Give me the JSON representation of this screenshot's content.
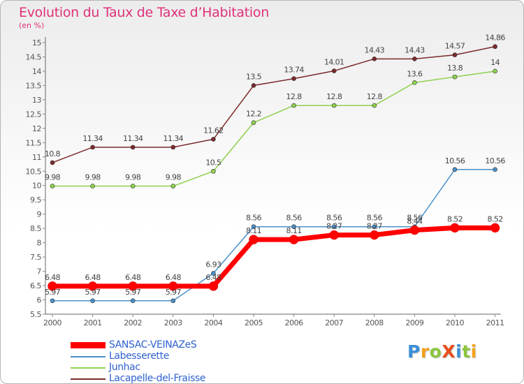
{
  "title": "Evolution du Taux de Taxe d’Habitation",
  "unit_label": "(en %)",
  "logo_text": "ProXiti",
  "chart_data": {
    "type": "line",
    "title": "Evolution du Taux de Taxe d’Habitation",
    "ylabel": "(en %)",
    "xlabel": "",
    "ylim": [
      5.5,
      15
    ],
    "yticks": [
      "5.5",
      "6",
      "6.5",
      "7",
      "7.5",
      "8",
      "8.5",
      "9",
      "9.5",
      "10",
      "10.5",
      "11",
      "11.5",
      "12",
      "12.5",
      "13",
      "13.5",
      "14",
      "14.5",
      "15"
    ],
    "categories": [
      "2000",
      "2001",
      "2002",
      "2003",
      "2004",
      "2005",
      "2006",
      "2007",
      "2008",
      "2009",
      "2010",
      "2011"
    ],
    "grid": false,
    "legend_position": "bottom-left",
    "series": [
      {
        "name": "SANSAC-VEINAZeS",
        "color": "#ff0000",
        "values": [
          6.48,
          6.48,
          6.48,
          6.48,
          6.48,
          8.11,
          8.11,
          8.27,
          8.27,
          8.44,
          8.52,
          8.52
        ],
        "labels": [
          "6.48",
          "6.48",
          "6.48",
          "6.48",
          "6.48",
          "8.11",
          "8.11",
          "8.27",
          "8.27",
          "8.44",
          "8.52",
          "8.52"
        ]
      },
      {
        "name": "Labesserette",
        "color": "#4a90c8",
        "values": [
          5.97,
          5.97,
          5.97,
          5.97,
          6.93,
          8.56,
          8.56,
          8.56,
          8.56,
          8.56,
          10.56,
          10.56
        ],
        "labels": [
          "5.97",
          "5.97",
          "5.97",
          "5.97",
          "6.93",
          "8.56",
          "8.56",
          "8.56",
          "8.56",
          "8.56",
          "10.56",
          "10.56"
        ]
      },
      {
        "name": "Junhac",
        "color": "#8ed14f",
        "values": [
          9.98,
          9.98,
          9.98,
          9.98,
          10.5,
          12.2,
          12.8,
          12.8,
          12.8,
          13.6,
          13.8,
          14
        ],
        "labels": [
          "9.98",
          "9.98",
          "9.98",
          "9.98",
          "10.5",
          "12.2",
          "12.8",
          "12.8",
          "12.8",
          "13.6",
          "13.8",
          "14"
        ]
      },
      {
        "name": "Lacapelle-del-Fraisse",
        "color": "#7a2a2a",
        "values": [
          10.8,
          11.34,
          11.34,
          11.34,
          11.62,
          13.5,
          13.74,
          14.01,
          14.43,
          14.43,
          14.57,
          14.86
        ],
        "labels": [
          "10.8",
          "11.34",
          "11.34",
          "11.34",
          "11.62",
          "13.5",
          "13.74",
          "14.01",
          "14.43",
          "14.43",
          "14.57",
          "14.86"
        ]
      }
    ]
  }
}
